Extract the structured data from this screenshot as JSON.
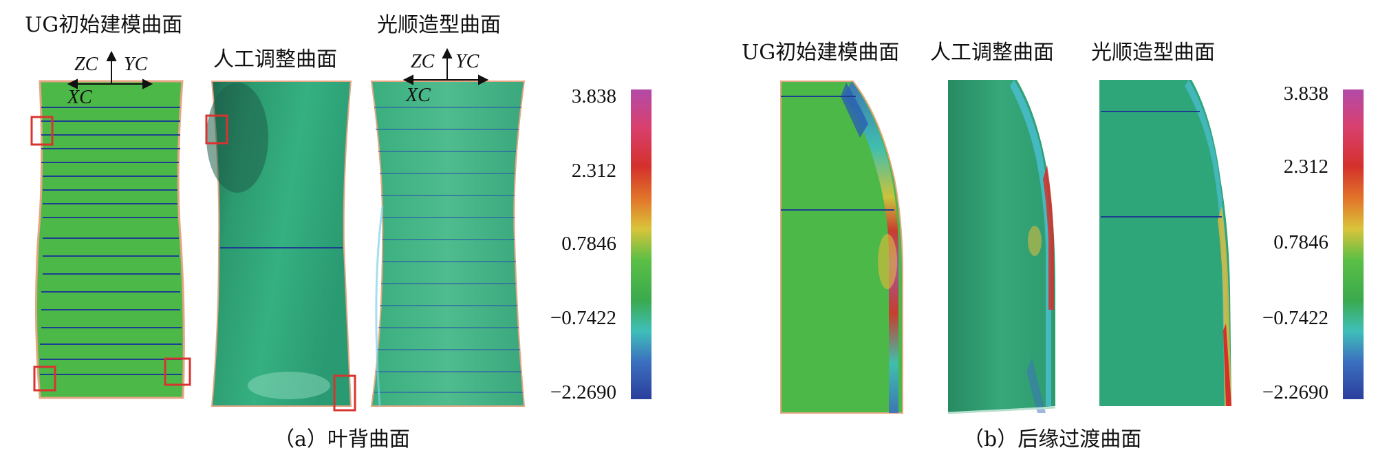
{
  "panel_a": {
    "caption": "（a）叶背曲面",
    "labels": {
      "ug": "UG初始建模曲面",
      "manual": "人工调整曲面",
      "smooth": "光顺造型曲面"
    },
    "axes_ug": {
      "zc": "ZC",
      "yc": "YC",
      "xc": "XC"
    },
    "axes_smooth": {
      "zc": "ZC",
      "yc": "YC",
      "xc": "XC"
    },
    "colorbar_ticks": [
      "3.838",
      "2.312",
      "0.7846",
      "−0.7422",
      "−2.2690"
    ]
  },
  "panel_b": {
    "caption": "（b）后缘过渡曲面",
    "labels": {
      "ug": "UG初始建模曲面",
      "manual": "人工调整曲面",
      "smooth": "光顺造型曲面"
    },
    "colorbar_ticks": [
      "3.838",
      "2.312",
      "0.7846",
      "−0.7422",
      "−2.2690"
    ]
  },
  "colors": {
    "surface_green": "#4cb848",
    "surface_teal": "#2fa57a",
    "marker_red": "#d8332f",
    "iso_line": "#1d3f8f"
  }
}
